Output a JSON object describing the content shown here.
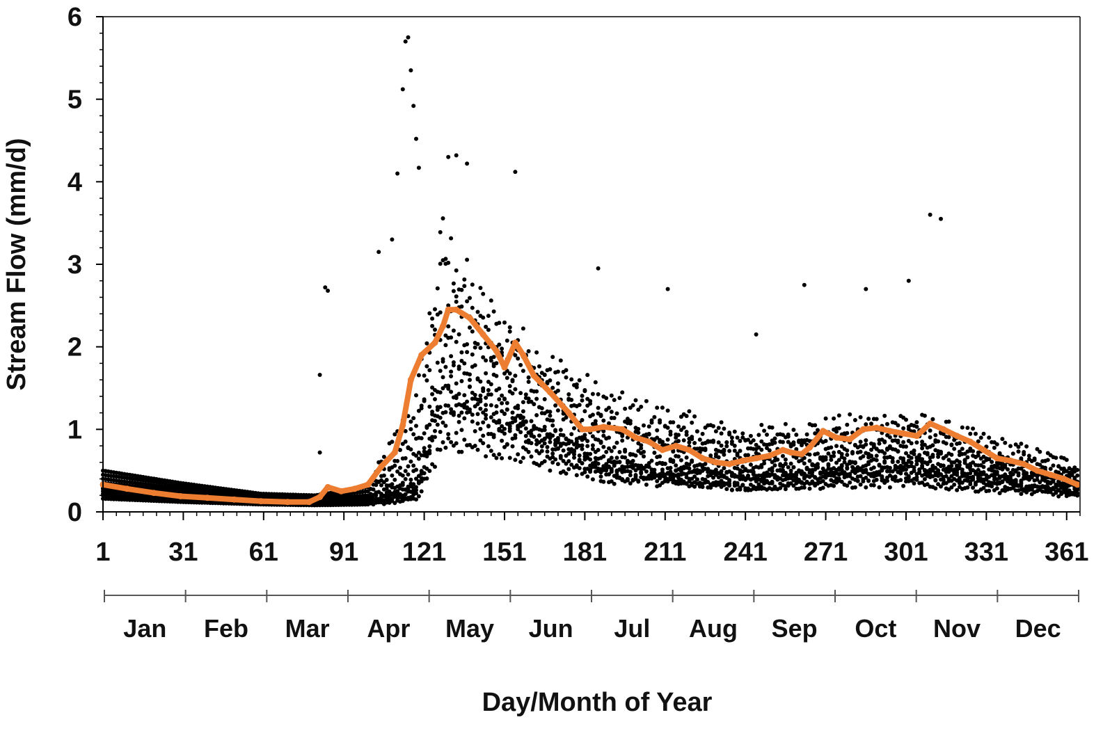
{
  "chart_data": {
    "type": "scatter",
    "title": "",
    "xlabel": "Day/Month of Year",
    "ylabel": "Stream Flow (mm/d)",
    "xlim": [
      1,
      366
    ],
    "ylim": [
      0,
      6
    ],
    "x_tick_values": [
      1,
      31,
      61,
      91,
      121,
      151,
      181,
      211,
      241,
      271,
      301,
      331,
      361
    ],
    "x_tick_labels": [
      "1",
      "31",
      "61",
      "91",
      "121",
      "151",
      "181",
      "211",
      "241",
      "271",
      "301",
      "331",
      "361"
    ],
    "y_tick_values": [
      0,
      1,
      2,
      3,
      4,
      5,
      6
    ],
    "y_tick_labels": [
      "0",
      "1",
      "2",
      "3",
      "4",
      "5",
      "6"
    ],
    "months": [
      "Jan",
      "Feb",
      "Mar",
      "Apr",
      "May",
      "Jun",
      "Jul",
      "Aug",
      "Sep",
      "Oct",
      "Nov",
      "Dec"
    ],
    "grid": false,
    "legend": "none",
    "series": [
      {
        "role": "daily-observations",
        "color": "#000000",
        "marker": "dot",
        "anchors": [
          {
            "x": [
              1,
              30,
              60,
              80,
              100,
              118,
              128,
              140,
              160,
              190,
              240,
              300,
              365
            ],
            "y": [
              0.5,
              0.35,
              0.22,
              0.2,
              0.3,
              1.3,
              3.2,
              2.5,
              1.9,
              1.3,
              0.9,
              1.1,
              0.55
            ]
          },
          {
            "x": [
              1,
              30,
              60,
              80,
              100,
              118,
              128,
              140,
              160,
              190,
              240,
              300,
              365
            ],
            "y": [
              0.45,
              0.32,
              0.2,
              0.18,
              0.25,
              1.0,
              2.8,
              2.3,
              1.7,
              1.1,
              0.8,
              0.95,
              0.48
            ]
          },
          {
            "x": [
              1,
              30,
              60,
              80,
              100,
              118,
              128,
              140,
              160,
              190,
              240,
              300,
              365
            ],
            "y": [
              0.4,
              0.28,
              0.18,
              0.16,
              0.2,
              0.8,
              2.4,
              2.1,
              1.5,
              1.0,
              0.7,
              0.85,
              0.42
            ]
          },
          {
            "x": [
              1,
              30,
              60,
              80,
              100,
              118,
              128,
              140,
              160,
              190,
              240,
              300,
              365
            ],
            "y": [
              0.35,
              0.25,
              0.16,
              0.14,
              0.18,
              0.6,
              2.0,
              1.8,
              1.3,
              0.85,
              0.6,
              0.75,
              0.38
            ]
          },
          {
            "x": [
              1,
              30,
              60,
              80,
              100,
              118,
              128,
              140,
              160,
              190,
              240,
              300,
              365
            ],
            "y": [
              0.3,
              0.22,
              0.14,
              0.12,
              0.15,
              0.45,
              1.7,
              1.6,
              1.2,
              0.7,
              0.5,
              0.65,
              0.33
            ]
          },
          {
            "x": [
              1,
              30,
              60,
              80,
              100,
              118,
              128,
              140,
              160,
              190,
              240,
              300,
              365
            ],
            "y": [
              0.25,
              0.18,
              0.12,
              0.1,
              0.12,
              0.35,
              1.4,
              1.3,
              1.0,
              0.6,
              0.45,
              0.55,
              0.28
            ]
          },
          {
            "x": [
              1,
              30,
              60,
              80,
              100,
              118,
              128,
              140,
              160,
              190,
              240,
              300,
              365
            ],
            "y": [
              0.2,
              0.15,
              0.1,
              0.09,
              0.1,
              0.25,
              1.1,
              1.1,
              0.85,
              0.5,
              0.38,
              0.45,
              0.24
            ]
          },
          {
            "x": [
              1,
              30,
              60,
              80,
              100,
              118,
              128,
              140,
              160,
              190,
              240,
              300,
              365
            ],
            "y": [
              0.16,
              0.12,
              0.09,
              0.08,
              0.09,
              0.15,
              0.85,
              0.8,
              0.65,
              0.4,
              0.3,
              0.35,
              0.2
            ]
          },
          {
            "x": [
              1,
              30,
              60,
              80,
              100,
              118,
              128,
              140,
              160,
              190,
              240,
              300,
              365
            ],
            "y": [
              0.22,
              0.17,
              0.11,
              0.1,
              0.11,
              0.2,
              1.6,
              1.4,
              0.95,
              0.45,
              0.3,
              0.5,
              0.22
            ]
          },
          {
            "x": [
              1,
              30,
              60,
              80,
              100,
              118,
              128,
              140,
              160,
              190,
              240,
              300,
              365
            ],
            "y": [
              0.28,
              0.2,
              0.13,
              0.12,
              0.14,
              0.3,
              1.3,
              1.2,
              0.9,
              0.55,
              0.4,
              0.6,
              0.3
            ]
          }
        ],
        "peaks": [
          {
            "x": 115,
            "y": 5.75
          },
          {
            "x": 114,
            "y": 5.7
          },
          {
            "x": 116,
            "y": 5.35
          },
          {
            "x": 113,
            "y": 5.12
          },
          {
            "x": 117,
            "y": 4.92
          },
          {
            "x": 118,
            "y": 4.52
          },
          {
            "x": 130,
            "y": 4.3
          },
          {
            "x": 133,
            "y": 4.32
          },
          {
            "x": 137,
            "y": 4.22
          },
          {
            "x": 155,
            "y": 4.12
          },
          {
            "x": 119,
            "y": 4.17
          },
          {
            "x": 111,
            "y": 4.1
          },
          {
            "x": 109,
            "y": 3.3
          },
          {
            "x": 104,
            "y": 3.15
          },
          {
            "x": 84,
            "y": 2.72
          },
          {
            "x": 85,
            "y": 2.68
          },
          {
            "x": 186,
            "y": 2.95
          },
          {
            "x": 212,
            "y": 2.7
          },
          {
            "x": 245,
            "y": 2.15
          },
          {
            "x": 263,
            "y": 2.75
          },
          {
            "x": 286,
            "y": 2.7
          },
          {
            "x": 310,
            "y": 3.6
          },
          {
            "x": 314,
            "y": 3.55
          },
          {
            "x": 302,
            "y": 2.8
          },
          {
            "x": 82,
            "y": 0.72
          },
          {
            "x": 82,
            "y": 1.66
          }
        ]
      },
      {
        "role": "mean-daily",
        "color": "#ed7d31",
        "marker": "dot-line",
        "x": [
          1,
          10,
          20,
          30,
          40,
          50,
          60,
          70,
          78,
          82,
          85,
          90,
          95,
          100,
          105,
          110,
          113,
          116,
          120,
          125,
          128,
          130,
          133,
          138,
          143,
          148,
          151,
          155,
          158,
          162,
          168,
          175,
          180,
          183,
          188,
          195,
          200,
          205,
          210,
          215,
          220,
          225,
          230,
          235,
          240,
          245,
          250,
          255,
          258,
          262,
          265,
          270,
          275,
          280,
          285,
          290,
          295,
          300,
          305,
          310,
          315,
          320,
          325,
          330,
          335,
          340,
          345,
          350,
          355,
          360,
          365
        ],
        "y": [
          0.33,
          0.28,
          0.23,
          0.19,
          0.17,
          0.15,
          0.13,
          0.12,
          0.12,
          0.18,
          0.3,
          0.25,
          0.28,
          0.33,
          0.55,
          0.72,
          1.05,
          1.6,
          1.9,
          2.05,
          2.25,
          2.45,
          2.45,
          2.35,
          2.15,
          1.95,
          1.75,
          2.05,
          1.9,
          1.65,
          1.45,
          1.2,
          1.0,
          1.0,
          1.03,
          1.0,
          0.9,
          0.85,
          0.75,
          0.8,
          0.75,
          0.65,
          0.6,
          0.58,
          0.62,
          0.65,
          0.68,
          0.75,
          0.72,
          0.7,
          0.78,
          0.98,
          0.9,
          0.88,
          1.0,
          1.02,
          0.98,
          0.95,
          0.92,
          1.07,
          1.0,
          0.92,
          0.85,
          0.75,
          0.65,
          0.62,
          0.58,
          0.5,
          0.45,
          0.4,
          0.33
        ]
      }
    ]
  }
}
